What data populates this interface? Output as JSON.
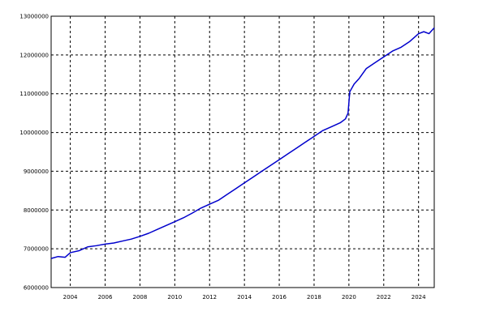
{
  "chart_data": {
    "type": "line",
    "title": "",
    "xlabel": "",
    "ylabel": "",
    "xlim": [
      2002.9,
      2024.9
    ],
    "ylim": [
      6000000,
      13000000
    ],
    "x_ticks": [
      "2004",
      "2006",
      "2008",
      "2010",
      "2012",
      "2014",
      "2016",
      "2018",
      "2020",
      "2022",
      "2024"
    ],
    "y_ticks": [
      "6000000",
      "7000000",
      "8000000",
      "9000000",
      "10000000",
      "11000000",
      "12000000",
      "13000000"
    ],
    "grid": true,
    "grid_style": "dashed",
    "legend": "none",
    "series": [
      {
        "color": "#0000cc",
        "x": [
          2002.9,
          2003.3,
          2003.7,
          2004.0,
          2004.5,
          2005.0,
          2005.5,
          2006.0,
          2006.5,
          2007.0,
          2007.5,
          2008.0,
          2008.5,
          2009.0,
          2009.5,
          2010.0,
          2010.5,
          2011.0,
          2011.5,
          2012.0,
          2012.5,
          2013.0,
          2013.5,
          2014.0,
          2014.5,
          2015.0,
          2015.5,
          2016.0,
          2016.5,
          2017.0,
          2017.5,
          2018.0,
          2018.5,
          2019.0,
          2019.5,
          2019.8,
          2019.95,
          2020.05,
          2020.3,
          2020.6,
          2021.0,
          2021.5,
          2022.0,
          2022.5,
          2023.0,
          2023.5,
          2024.0,
          2024.3,
          2024.6,
          2024.9
        ],
        "y": [
          6750000,
          6800000,
          6780000,
          6900000,
          6950000,
          7050000,
          7080000,
          7120000,
          7150000,
          7200000,
          7250000,
          7320000,
          7400000,
          7500000,
          7600000,
          7700000,
          7800000,
          7920000,
          8050000,
          8150000,
          8250000,
          8400000,
          8550000,
          8700000,
          8850000,
          9000000,
          9150000,
          9300000,
          9450000,
          9600000,
          9750000,
          9900000,
          10050000,
          10150000,
          10250000,
          10350000,
          10500000,
          11050000,
          11250000,
          11400000,
          11650000,
          11800000,
          11950000,
          12100000,
          12200000,
          12350000,
          12550000,
          12600000,
          12550000,
          12700000
        ]
      }
    ]
  }
}
